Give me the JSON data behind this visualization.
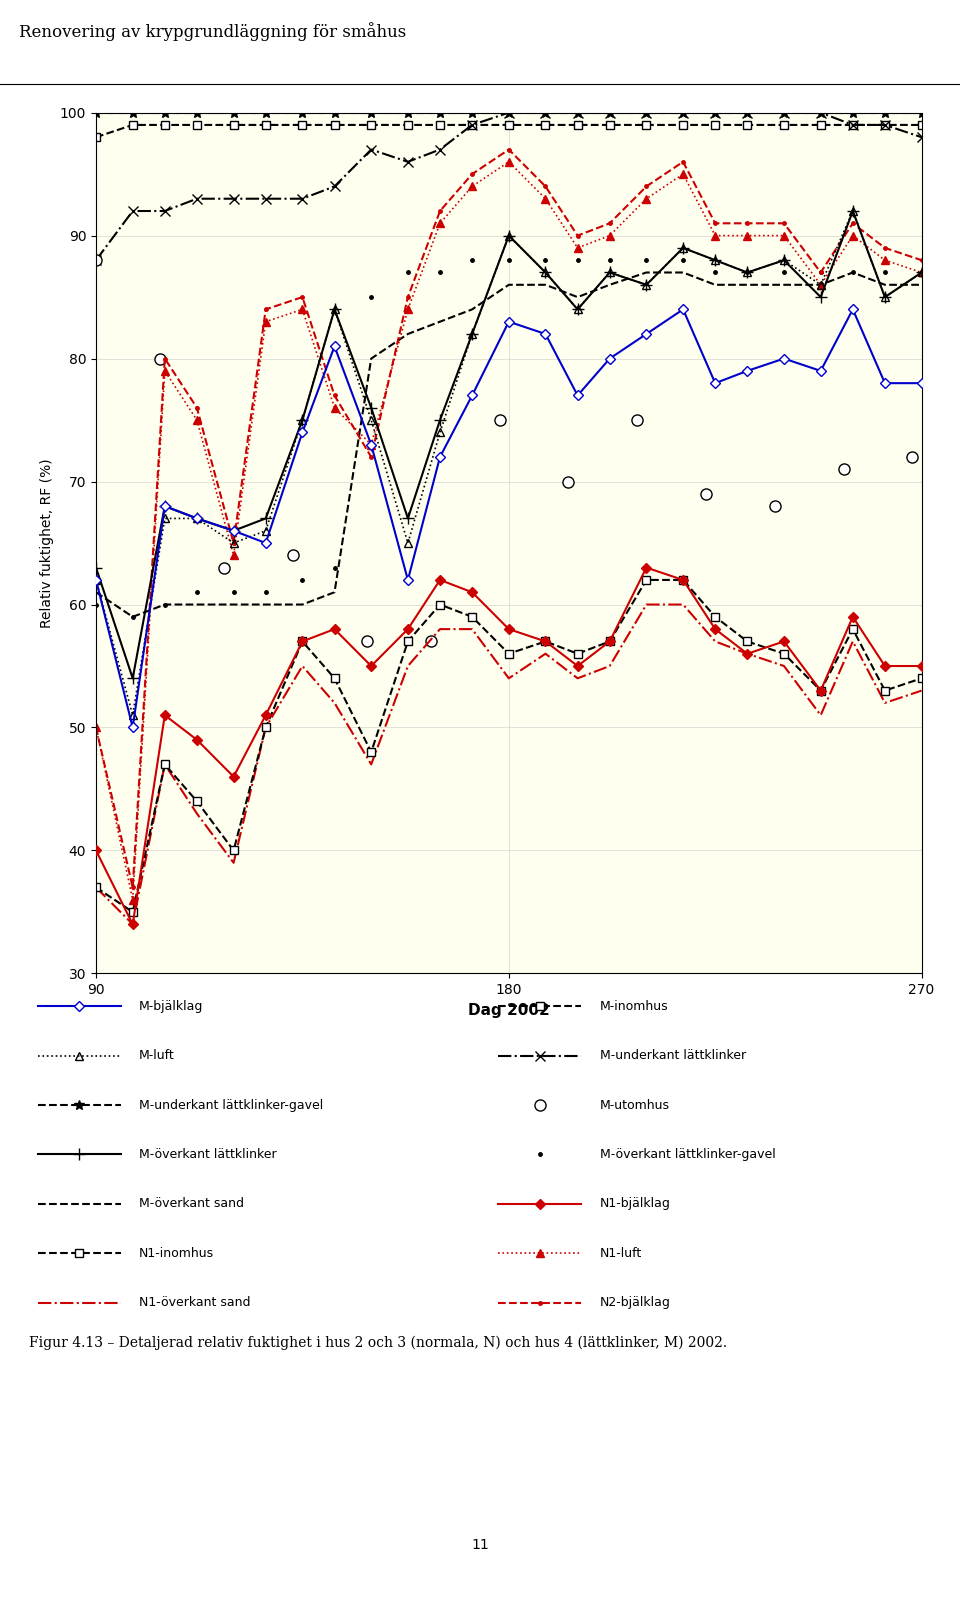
{
  "title": "Renovering av krypgrundläggning för småhus",
  "xlabel": "Dag 2002",
  "ylabel": "Relativ fuktighet, RF (%)",
  "xlim": [
    90,
    270
  ],
  "ylim": [
    30,
    100
  ],
  "xticks": [
    90,
    180,
    270
  ],
  "yticks": [
    30,
    40,
    50,
    60,
    70,
    80,
    90,
    100
  ],
  "background_color": "#FFFFF0",
  "caption": "Figur 4.13 – Detaljerad relativ fuktighet i hus 2 och 3 (normala, N) och hus 4 (lättklinker, M) 2002.",
  "page_number": "11",
  "series": {
    "M_bjalklager": {
      "x": [
        90,
        98,
        105,
        112,
        120,
        127,
        135,
        142,
        150,
        158,
        165,
        172,
        180,
        188,
        195,
        202,
        210,
        218,
        225,
        232,
        240,
        248,
        255,
        262,
        270
      ],
      "y": [
        62,
        50,
        68,
        67,
        66,
        65,
        74,
        81,
        73,
        62,
        72,
        77,
        83,
        82,
        77,
        80,
        82,
        84,
        78,
        79,
        80,
        79,
        84,
        78,
        78
      ],
      "color": "#0000CC",
      "linestyle": "-",
      "marker": "D",
      "markersize": 5,
      "markerfacecolor": "white",
      "markeredgecolor": "#0000CC",
      "label": "M-bjälklag",
      "linewidth": 1.5
    },
    "M_luft": {
      "x": [
        90,
        98,
        105,
        112,
        120,
        127,
        135,
        142,
        150,
        158,
        165,
        172,
        180,
        188,
        195,
        202,
        210,
        218,
        225,
        232,
        240,
        248,
        255,
        262,
        270
      ],
      "y": [
        62,
        51,
        67,
        67,
        65,
        66,
        75,
        84,
        75,
        65,
        74,
        82,
        90,
        87,
        84,
        87,
        86,
        89,
        88,
        87,
        88,
        86,
        92,
        85,
        87
      ],
      "color": "#000000",
      "linestyle": ":",
      "marker": "^",
      "markersize": 6,
      "markerfacecolor": "none",
      "markeredgecolor": "#000000",
      "label": "M-luft",
      "linewidth": 1.2
    },
    "M_underkant_lkgavel": {
      "x": [
        90,
        98,
        105,
        112,
        120,
        127,
        135,
        142,
        150,
        158,
        165,
        172,
        180,
        188,
        195,
        202,
        210,
        218,
        225,
        232,
        240,
        248,
        255,
        262,
        270
      ],
      "y": [
        100,
        100,
        100,
        100,
        100,
        100,
        100,
        100,
        100,
        100,
        100,
        100,
        100,
        100,
        100,
        100,
        100,
        100,
        100,
        100,
        100,
        100,
        100,
        100,
        100
      ],
      "color": "#000000",
      "linestyle": "--",
      "marker": "*",
      "markersize": 7,
      "markerfacecolor": "#000000",
      "markeredgecolor": "#000000",
      "label": "M-underkant lättklinker-gavel",
      "linewidth": 1.5
    },
    "M_overkant_lattklinker": {
      "x": [
        90,
        98,
        105,
        112,
        120,
        127,
        135,
        142,
        150,
        158,
        165,
        172,
        180,
        188,
        195,
        202,
        210,
        218,
        225,
        232,
        240,
        248,
        255,
        262,
        270
      ],
      "y": [
        63,
        54,
        68,
        67,
        66,
        67,
        75,
        84,
        76,
        67,
        75,
        82,
        90,
        87,
        84,
        87,
        86,
        89,
        88,
        87,
        88,
        85,
        92,
        85,
        87
      ],
      "color": "#000000",
      "linestyle": "-",
      "marker": "+",
      "markersize": 8,
      "markerfacecolor": "#000000",
      "markeredgecolor": "#000000",
      "label": "M-överkant lättklinker",
      "linewidth": 1.5
    },
    "M_overkant_sand": {
      "x": [
        90,
        98,
        105,
        112,
        120,
        127,
        135,
        142,
        150,
        158,
        165,
        172,
        180,
        188,
        195,
        202,
        210,
        218,
        225,
        232,
        240,
        248,
        255,
        262,
        270
      ],
      "y": [
        61,
        59,
        60,
        60,
        60,
        60,
        60,
        61,
        80,
        82,
        83,
        84,
        86,
        86,
        85,
        86,
        87,
        87,
        86,
        86,
        86,
        86,
        87,
        86,
        86
      ],
      "color": "#000000",
      "linestyle": "--",
      "marker": "None",
      "markersize": 0,
      "markerfacecolor": "#000000",
      "markeredgecolor": "#000000",
      "label": "M-överkant sand",
      "linewidth": 1.5
    },
    "M_inomhus": {
      "x": [
        90,
        98,
        105,
        112,
        120,
        127,
        135,
        142,
        150,
        158,
        165,
        172,
        180,
        188,
        195,
        202,
        210,
        218,
        225,
        232,
        240,
        248,
        255,
        262,
        270
      ],
      "y": [
        98,
        99,
        99,
        99,
        99,
        99,
        99,
        99,
        99,
        99,
        99,
        99,
        99,
        99,
        99,
        99,
        99,
        99,
        99,
        99,
        99,
        99,
        99,
        99,
        99
      ],
      "color": "#000000",
      "linestyle": "--",
      "marker": "s",
      "markersize": 6,
      "markerfacecolor": "white",
      "markeredgecolor": "#000000",
      "label": "M-inomhus",
      "linewidth": 1.5
    },
    "M_underkant_lattklinker": {
      "x": [
        90,
        98,
        105,
        112,
        120,
        127,
        135,
        142,
        150,
        158,
        165,
        172,
        180,
        188,
        195,
        202,
        210,
        218,
        225,
        232,
        240,
        248,
        255,
        262,
        270
      ],
      "y": [
        88,
        92,
        92,
        93,
        93,
        93,
        93,
        94,
        97,
        96,
        97,
        99,
        100,
        100,
        100,
        100,
        100,
        100,
        100,
        100,
        100,
        100,
        99,
        99,
        98
      ],
      "color": "#000000",
      "linestyle": "-.",
      "marker": "x",
      "markersize": 7,
      "markerfacecolor": "#000000",
      "markeredgecolor": "#000000",
      "label": "M-underkant lättklinker",
      "linewidth": 1.5
    },
    "M_utomhus": {
      "x": [
        90,
        104,
        118,
        133,
        149,
        163,
        178,
        193,
        208,
        223,
        238,
        253,
        268
      ],
      "y": [
        88,
        80,
        63,
        64,
        57,
        57,
        75,
        70,
        75,
        69,
        68,
        71,
        72
      ],
      "color": "#000000",
      "linestyle": "None",
      "marker": "o",
      "markersize": 8,
      "markerfacecolor": "white",
      "markeredgecolor": "#000000",
      "label": "M-utomhus",
      "linewidth": 0
    },
    "M_overkant_lk_gavel": {
      "x": [
        90,
        98,
        105,
        112,
        120,
        127,
        135,
        142,
        150,
        158,
        165,
        172,
        180,
        188,
        195,
        202,
        210,
        218,
        225,
        232,
        240,
        248,
        255,
        262,
        270
      ],
      "y": [
        60,
        59,
        60,
        61,
        61,
        61,
        62,
        63,
        85,
        87,
        87,
        88,
        88,
        88,
        88,
        88,
        88,
        88,
        87,
        87,
        87,
        87,
        87,
        87,
        87
      ],
      "color": "#000000",
      "linestyle": "None",
      "marker": ".",
      "markersize": 5,
      "markerfacecolor": "#000000",
      "markeredgecolor": "#000000",
      "label": "M-överkant lättklinker-gavel",
      "linewidth": 0
    },
    "N1_bjalklager": {
      "x": [
        90,
        98,
        105,
        112,
        120,
        127,
        135,
        142,
        150,
        158,
        165,
        172,
        180,
        188,
        195,
        202,
        210,
        218,
        225,
        232,
        240,
        248,
        255,
        262,
        270
      ],
      "y": [
        40,
        34,
        51,
        49,
        46,
        51,
        57,
        58,
        55,
        58,
        62,
        61,
        58,
        57,
        55,
        57,
        63,
        62,
        58,
        56,
        57,
        53,
        59,
        55,
        55
      ],
      "color": "#CC0000",
      "linestyle": "-",
      "marker": "D",
      "markersize": 5,
      "markerfacecolor": "#CC0000",
      "markeredgecolor": "#CC0000",
      "label": "N1-bjälklag",
      "linewidth": 1.5
    },
    "N1_inomhus": {
      "x": [
        90,
        98,
        105,
        112,
        120,
        127,
        135,
        142,
        150,
        158,
        165,
        172,
        180,
        188,
        195,
        202,
        210,
        218,
        225,
        232,
        240,
        248,
        255,
        262,
        270
      ],
      "y": [
        37,
        35,
        47,
        44,
        40,
        50,
        57,
        54,
        48,
        57,
        60,
        59,
        56,
        57,
        56,
        57,
        62,
        62,
        59,
        57,
        56,
        53,
        58,
        53,
        54
      ],
      "color": "#000000",
      "linestyle": "--",
      "marker": "s",
      "markersize": 6,
      "markerfacecolor": "white",
      "markeredgecolor": "#000000",
      "label": "N1-inomhus",
      "linewidth": 1.5
    },
    "N1_overkant_sand": {
      "x": [
        90,
        98,
        105,
        112,
        120,
        127,
        135,
        142,
        150,
        158,
        165,
        172,
        180,
        188,
        195,
        202,
        210,
        218,
        225,
        232,
        240,
        248,
        255,
        262,
        270
      ],
      "y": [
        37,
        34,
        47,
        43,
        39,
        50,
        55,
        52,
        47,
        55,
        58,
        58,
        54,
        56,
        54,
        55,
        60,
        60,
        57,
        56,
        55,
        51,
        57,
        52,
        53
      ],
      "color": "#CC0000",
      "linestyle": "-.",
      "marker": "None",
      "markersize": 0,
      "markerfacecolor": "#CC0000",
      "markeredgecolor": "#CC0000",
      "label": "N1-överkant sand",
      "linewidth": 1.5
    },
    "N1_luft": {
      "x": [
        90,
        98,
        105,
        112,
        120,
        127,
        135,
        142,
        150,
        158,
        165,
        172,
        180,
        188,
        195,
        202,
        210,
        218,
        225,
        232,
        240,
        248,
        255,
        262,
        270
      ],
      "y": [
        50,
        36,
        79,
        75,
        64,
        83,
        84,
        76,
        73,
        84,
        91,
        94,
        96,
        93,
        89,
        90,
        93,
        95,
        90,
        90,
        90,
        86,
        90,
        88,
        87
      ],
      "color": "#CC0000",
      "linestyle": ":",
      "marker": "^",
      "markersize": 6,
      "markerfacecolor": "#CC0000",
      "markeredgecolor": "#CC0000",
      "label": "N1-luft",
      "linewidth": 1.2
    },
    "N2_bjalklager": {
      "x": [
        90,
        98,
        105,
        112,
        120,
        127,
        135,
        142,
        150,
        158,
        165,
        172,
        180,
        188,
        195,
        202,
        210,
        218,
        225,
        232,
        240,
        248,
        255,
        262,
        270
      ],
      "y": [
        50,
        37,
        80,
        76,
        65,
        84,
        85,
        77,
        72,
        85,
        92,
        95,
        97,
        94,
        90,
        91,
        94,
        96,
        91,
        91,
        91,
        87,
        91,
        89,
        88
      ],
      "color": "#CC0000",
      "linestyle": "--",
      "marker": ".",
      "markersize": 5,
      "markerfacecolor": "#CC0000",
      "markeredgecolor": "#CC0000",
      "label": "N2-bjälklag",
      "linewidth": 1.5
    }
  },
  "legend_left": [
    {
      "key": "M_bjalklager",
      "label": "M-bjälklag"
    },
    {
      "key": "M_luft",
      "label": "M-luft"
    },
    {
      "key": "M_underkant_lkgavel",
      "label": "M-underkant lättklinker-gavel"
    },
    {
      "key": "M_overkant_lattklinker",
      "label": "M-överkant lättklinker"
    },
    {
      "key": "M_overkant_sand",
      "label": "M-överkant sand"
    },
    {
      "key": "N1_inomhus",
      "label": "N1-inomhus"
    },
    {
      "key": "N1_overkant_sand",
      "label": "N1-överkant sand"
    }
  ],
  "legend_right": [
    {
      "key": "M_inomhus",
      "label": "M-inomhus"
    },
    {
      "key": "M_underkant_lattklinker",
      "label": "M-underkant lättklinker"
    },
    {
      "key": "M_utomhus",
      "label": "M-utomhus"
    },
    {
      "key": "M_overkant_lk_gavel",
      "label": "M-överkant lättklinker-gavel"
    },
    {
      "key": "N1_bjalklager",
      "label": "N1-bjälklag"
    },
    {
      "key": "N1_luft",
      "label": "N1-luft"
    },
    {
      "key": "N2_bjalklager",
      "label": "N2-bjälklag"
    }
  ]
}
